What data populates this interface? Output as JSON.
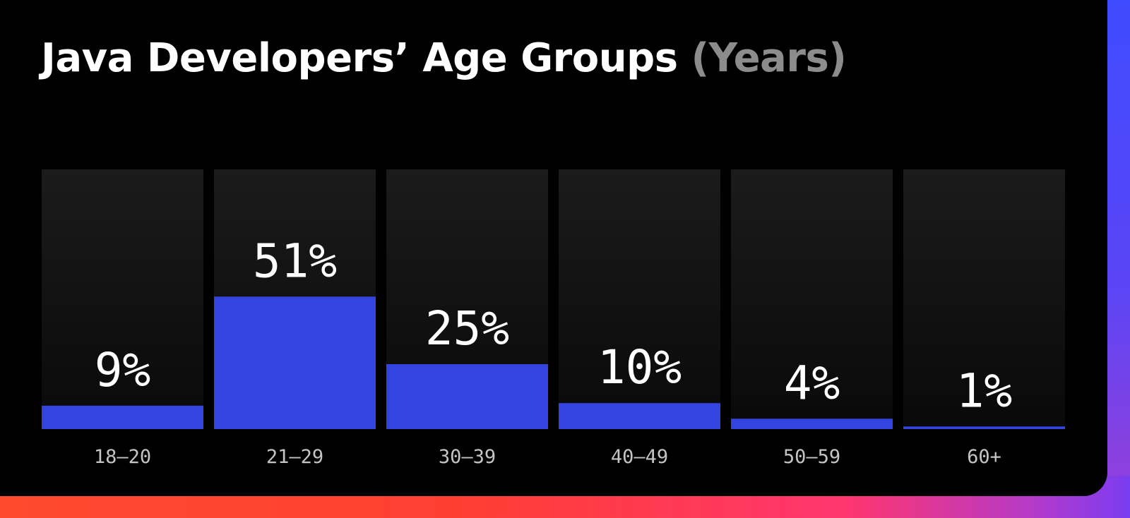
{
  "title": "Java Developers’ Age Groups",
  "title_unit": "(Years)",
  "chart_data": {
    "type": "bar",
    "title": "Java Developers’ Age Groups (Years)",
    "categories": [
      "18–20",
      "21–29",
      "30–39",
      "40–49",
      "50–59",
      "60+"
    ],
    "values": [
      9,
      51,
      25,
      10,
      4,
      1
    ],
    "value_labels": [
      "9%",
      "51%",
      "25%",
      "10%",
      "4%",
      "1%"
    ],
    "unit": "%",
    "xlabel": "",
    "ylabel": "",
    "ylim": [
      0,
      100
    ],
    "grid": false,
    "legend": "none",
    "colors": {
      "bar": "#3444e0",
      "track_top": "#1b1b1b",
      "track_bottom": "#090909",
      "background": "#000000"
    }
  }
}
